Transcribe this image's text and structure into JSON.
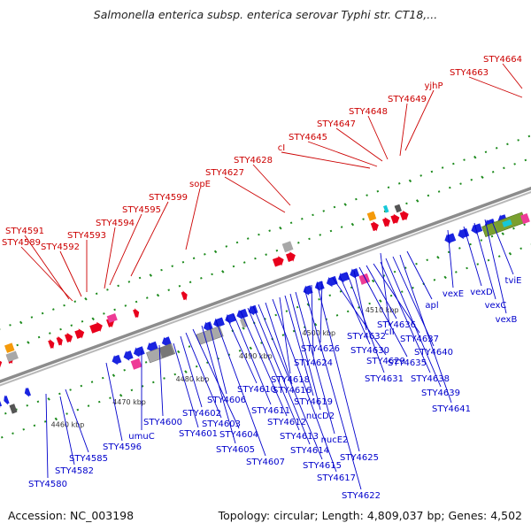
{
  "title": "Salmonella enterica subsp. enterica serovar Typhi str. CT18,...",
  "footer": {
    "accession": "Accession: NC_003198",
    "summary": "Topology: circular; Length: 4,809,037 bp; Genes: 4,502"
  },
  "colors": {
    "forward": "#e8001c",
    "reverse": "#1a24e0",
    "forward_label": "#cc0000",
    "reverse_label": "#0000cc",
    "rRNA_pink": "#ee3b96",
    "orange": "#f59a0a",
    "olive": "#7aa030",
    "cyan": "#16c8d8",
    "gray": "#a8a8a8",
    "tick_green": "#1c8a1c",
    "backbone": "#8c8c8c"
  },
  "scale_ticks": [
    "4460 kbp",
    "4470 kbp",
    "4480 kbp",
    "4490 kbp",
    "4500 kbp",
    "4510 kbp"
  ],
  "forward_labels": [
    "STY4591",
    "STY4589",
    "STY4592",
    "STY4593",
    "STY4594",
    "STY4595",
    "STY4599",
    "sopE",
    "STY4627",
    "STY4628",
    "cI",
    "STY4645",
    "STY4647",
    "STY4648",
    "STY4649",
    "yjhP",
    "STY4663",
    "STY4664"
  ],
  "reverse_labels": [
    "STY4580",
    "STY4582",
    "STY4585",
    "STY4596",
    "umuC",
    "STY4600",
    "STY4601",
    "STY4602",
    "STY4603",
    "STY4604",
    "STY4605",
    "STY4606",
    "STY4607",
    "STY4610",
    "STY4611",
    "STY4612",
    "STY4613",
    "STY4614",
    "STY4615",
    "STY4616",
    "STY4617",
    "STY4618",
    "STY4619",
    "nucD2",
    "nucE2",
    "STY4622",
    "STY4624",
    "STY4625",
    "STY4626",
    "STY4629",
    "STY4630",
    "STY4631",
    "STY4632",
    "STY4635",
    "STY4636",
    "STY4637",
    "STY4638",
    "STY4639",
    "STY4640",
    "STY4641",
    "cII",
    "apl",
    "vexE",
    "vexD",
    "vexC",
    "vexB",
    "tviE"
  ]
}
